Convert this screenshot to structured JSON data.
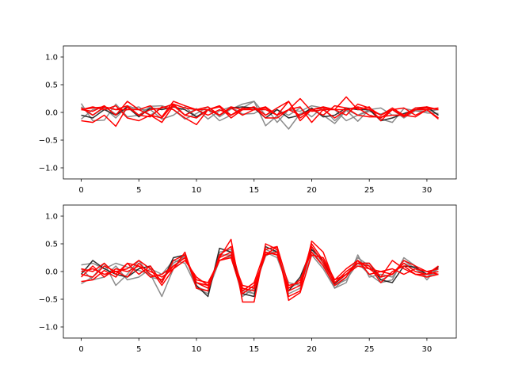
{
  "colors": {
    "gray": "#808080",
    "dark": "#1a1a1a",
    "red": "#ff0000"
  },
  "chart_data": [
    {
      "type": "line",
      "title": "",
      "xlabel": "",
      "ylabel": "",
      "xlim": [
        -1.55,
        32.55
      ],
      "ylim": [
        -1.2,
        1.2
      ],
      "grid": false,
      "xticks": [
        0,
        5,
        10,
        15,
        20,
        25,
        30
      ],
      "yticks": [
        -1.0,
        -0.5,
        0.0,
        0.5,
        1.0
      ],
      "xtick_labels": [
        "0",
        "5",
        "10",
        "15",
        "20",
        "25",
        "30"
      ],
      "ytick_labels": [
        "−1.0",
        "−0.5",
        "0.0",
        "0.5",
        "1.0"
      ],
      "x": [
        0,
        1,
        2,
        3,
        4,
        5,
        6,
        7,
        8,
        9,
        10,
        11,
        12,
        13,
        14,
        15,
        16,
        17,
        18,
        19,
        20,
        21,
        22,
        23,
        24,
        25,
        26,
        27,
        28,
        29,
        30,
        31
      ],
      "series": [
        {
          "color": "gray",
          "alpha": 0.9,
          "values": [
            0.16,
            -0.15,
            -0.14,
            0.15,
            -0.08,
            -0.05,
            0.11,
            0.12,
            0.05,
            -0.12,
            -0.02,
            0.1,
            -0.08,
            0.06,
            0.15,
            0.2,
            -0.24,
            -0.06,
            -0.3,
            -0.02,
            0.05,
            -0.05,
            -0.2,
            0.04,
            -0.16,
            0.05,
            -0.12,
            -0.18,
            0.07,
            0.03,
            -0.01,
            -0.02
          ]
        },
        {
          "color": "gray",
          "alpha": 0.9,
          "values": [
            -0.12,
            0.05,
            0.1,
            -0.03,
            0.05,
            0.1,
            -0.05,
            0.08,
            0.15,
            -0.05,
            0.07,
            -0.12,
            0.03,
            0.1,
            -0.03,
            -0.02,
            0.1,
            -0.18,
            0.05,
            0.02,
            0.12,
            0.08,
            -0.15,
            0.05,
            -0.05,
            0.02,
            -0.03,
            0.05,
            -0.1,
            0.03,
            0.02,
            0.05
          ]
        },
        {
          "color": "gray",
          "alpha": 0.9,
          "values": [
            0.1,
            -0.05,
            0.08,
            -0.1,
            0.12,
            0.05,
            0.05,
            -0.12,
            -0.05,
            0.1,
            -0.08,
            0.05,
            -0.15,
            -0.05,
            0.08,
            0.2,
            -0.05,
            0.05,
            -0.05,
            0.08,
            -0.08,
            0.1,
            0.05,
            -0.15,
            -0.05,
            0.05,
            0.08,
            -0.05,
            -0.05,
            0.08,
            0.08,
            -0.05
          ]
        },
        {
          "color": "dark",
          "alpha": 0.9,
          "values": [
            -0.05,
            -0.1,
            0.05,
            -0.05,
            0.1,
            -0.08,
            0.08,
            0.05,
            0.1,
            0.05,
            -0.08,
            0.05,
            -0.05,
            0.08,
            0.1,
            0.08,
            -0.1,
            0.05,
            -0.1,
            -0.05,
            0.08,
            -0.08,
            -0.05,
            0.08,
            0.05,
            0.05,
            -0.15,
            -0.1,
            -0.02,
            0.05,
            0.1,
            -0.05
          ]
        },
        {
          "color": "red",
          "alpha": 1.0,
          "values": [
            0.05,
            0.02,
            0.12,
            -0.05,
            0.2,
            0.05,
            0.12,
            -0.08,
            0.2,
            0.12,
            0.05,
            0.05,
            0.12,
            -0.05,
            0.05,
            0.05,
            0.1,
            -0.05,
            0.05,
            0.25,
            0.02,
            0.05,
            0.05,
            0.28,
            0.05,
            0.1,
            -0.15,
            0.05,
            0.08,
            -0.05,
            0.05,
            -0.1
          ]
        },
        {
          "color": "red",
          "alpha": 1.0,
          "values": [
            0.08,
            -0.05,
            0.1,
            0.05,
            0.12,
            -0.05,
            0.05,
            0.08,
            0.15,
            -0.05,
            0.05,
            0.1,
            -0.05,
            0.1,
            0.05,
            0.1,
            -0.05,
            0.08,
            0.2,
            -0.15,
            0.05,
            0.1,
            0.05,
            -0.05,
            0.15,
            0.08,
            -0.05,
            0.08,
            -0.05,
            0.08,
            0.1,
            0.05
          ]
        },
        {
          "color": "red",
          "alpha": 1.0,
          "values": [
            -0.15,
            -0.18,
            -0.05,
            -0.25,
            0.1,
            -0.05,
            -0.08,
            0.1,
            0.05,
            -0.1,
            -0.22,
            0.05,
            0.1,
            -0.1,
            0.05,
            0.1,
            -0.1,
            -0.1,
            0.05,
            0.1,
            -0.18,
            0.05,
            -0.1,
            0.05,
            0.08,
            -0.05,
            -0.1,
            0.05,
            -0.08,
            0.05,
            0.05,
            -0.12
          ]
        },
        {
          "color": "red",
          "alpha": 1.0,
          "values": [
            0.05,
            0.1,
            0.05,
            0.12,
            -0.1,
            -0.15,
            -0.05,
            -0.18,
            0.12,
            -0.05,
            -0.1,
            0.05,
            -0.05,
            0.08,
            -0.05,
            0.05,
            0.05,
            -0.05,
            0.05,
            -0.05,
            0.05,
            -0.05,
            0.12,
            0.08,
            -0.05,
            -0.08,
            -0.08,
            -0.05,
            -0.05,
            -0.08,
            0.05,
            0.08
          ]
        },
        {
          "color": "red",
          "alpha": 1.0,
          "values": [
            0.05,
            0.08,
            0.1,
            0.05,
            0.05,
            0.05,
            -0.05,
            -0.1,
            0.15,
            0.08,
            0.05,
            -0.05,
            0.05,
            -0.05,
            0.08,
            0.05,
            0.08,
            -0.05,
            0.2,
            -0.1,
            0.05,
            0.08,
            0.05,
            0.05,
            0.1,
            0.05,
            -0.05,
            0.05,
            -0.05,
            0.05,
            0.08,
            0.05
          ]
        }
      ]
    },
    {
      "type": "line",
      "title": "",
      "xlabel": "",
      "ylabel": "",
      "xlim": [
        -1.55,
        32.55
      ],
      "ylim": [
        -1.2,
        1.2
      ],
      "grid": false,
      "xticks": [
        0,
        5,
        10,
        15,
        20,
        25,
        30
      ],
      "yticks": [
        -1.0,
        -0.5,
        0.0,
        0.5,
        1.0
      ],
      "xtick_labels": [
        "0",
        "5",
        "10",
        "15",
        "20",
        "25",
        "30"
      ],
      "ytick_labels": [
        "−1.0",
        "−0.5",
        "0.0",
        "0.5",
        "1.0"
      ],
      "x": [
        0,
        1,
        2,
        3,
        4,
        5,
        6,
        7,
        8,
        9,
        10,
        11,
        12,
        13,
        14,
        15,
        16,
        17,
        18,
        19,
        20,
        21,
        22,
        23,
        24,
        25,
        26,
        27,
        28,
        29,
        30,
        31
      ],
      "series": [
        {
          "color": "gray",
          "alpha": 0.9,
          "values": [
            0.12,
            0.15,
            0.05,
            0.15,
            0.08,
            0.02,
            -0.05,
            -0.45,
            0.05,
            0.3,
            -0.3,
            -0.4,
            0.35,
            0.4,
            -0.3,
            -0.4,
            0.4,
            0.3,
            -0.2,
            -0.25,
            0.3,
            0.05,
            -0.3,
            -0.2,
            0.3,
            -0.1,
            -0.05,
            -0.1,
            0.2,
            0.05,
            -0.1,
            0.05
          ]
        },
        {
          "color": "gray",
          "alpha": 0.9,
          "values": [
            -0.22,
            -0.1,
            0.15,
            -0.25,
            -0.05,
            0.2,
            -0.1,
            -0.15,
            0.15,
            0.28,
            -0.2,
            -0.3,
            0.3,
            0.3,
            -0.35,
            -0.4,
            0.35,
            0.25,
            -0.3,
            -0.2,
            0.4,
            0.1,
            -0.25,
            -0.15,
            0.15,
            -0.05,
            -0.2,
            -0.15,
            0.25,
            0.1,
            -0.15,
            0.1
          ]
        },
        {
          "color": "gray",
          "alpha": 0.9,
          "values": [
            0.05,
            -0.15,
            -0.1,
            0.1,
            -0.15,
            -0.1,
            0.05,
            -0.05,
            0.2,
            0.15,
            -0.28,
            -0.35,
            0.2,
            0.28,
            -0.45,
            -0.3,
            0.28,
            0.4,
            -0.4,
            -0.3,
            0.45,
            0.15,
            -0.3,
            -0.1,
            0.25,
            0.1,
            -0.15,
            -0.05,
            0.15,
            0.05,
            -0.05,
            -0.05
          ]
        },
        {
          "color": "dark",
          "alpha": 0.9,
          "values": [
            -0.05,
            0.2,
            0.05,
            -0.05,
            -0.1,
            0.05,
            0.1,
            -0.2,
            0.25,
            0.3,
            -0.25,
            -0.45,
            0.42,
            0.35,
            -0.4,
            -0.45,
            0.45,
            0.35,
            -0.35,
            -0.1,
            0.4,
            0.2,
            -0.22,
            -0.05,
            0.15,
            0.15,
            -0.15,
            -0.2,
            0.1,
            0.08,
            -0.05,
            0.08
          ]
        },
        {
          "color": "red",
          "alpha": 1.0,
          "values": [
            0.05,
            0.0,
            0.15,
            -0.05,
            0.15,
            -0.05,
            0.1,
            -0.2,
            0.2,
            0.3,
            -0.2,
            -0.25,
            0.25,
            0.58,
            -0.55,
            -0.55,
            0.5,
            0.4,
            -0.45,
            -0.35,
            0.55,
            0.35,
            -0.2,
            -0.05,
            0.1,
            0.05,
            0.0,
            0.05,
            -0.05,
            0.05,
            0.0,
            0.05
          ]
        },
        {
          "color": "red",
          "alpha": 1.0,
          "values": [
            -0.18,
            -0.15,
            0.02,
            -0.1,
            0.15,
            0.1,
            -0.1,
            -0.05,
            0.1,
            0.25,
            -0.15,
            -0.2,
            0.2,
            0.3,
            -0.25,
            -0.3,
            0.3,
            0.45,
            -0.52,
            -0.38,
            0.3,
            0.25,
            -0.15,
            0.05,
            0.2,
            0.05,
            -0.1,
            0.2,
            0.05,
            -0.05,
            -0.05,
            0.1
          ]
        },
        {
          "color": "red",
          "alpha": 1.0,
          "values": [
            -0.05,
            -0.1,
            0.1,
            0.0,
            0.05,
            0.2,
            0.05,
            -0.25,
            0.05,
            0.35,
            -0.3,
            -0.35,
            0.3,
            0.45,
            -0.35,
            -0.2,
            0.4,
            0.45,
            -0.25,
            -0.2,
            0.5,
            0.2,
            -0.15,
            -0.05,
            0.15,
            0.1,
            -0.2,
            0.0,
            0.1,
            -0.05,
            -0.1,
            -0.05
          ]
        },
        {
          "color": "red",
          "alpha": 1.0,
          "values": [
            0.0,
            0.05,
            -0.05,
            0.0,
            -0.1,
            0.15,
            -0.05,
            -0.15,
            0.1,
            0.25,
            -0.2,
            -0.3,
            0.25,
            0.35,
            -0.3,
            -0.35,
            0.35,
            0.3,
            -0.3,
            -0.15,
            0.35,
            0.1,
            -0.25,
            -0.1,
            0.2,
            -0.05,
            0.0,
            -0.05,
            0.15,
            0.0,
            -0.05,
            0.0
          ]
        },
        {
          "color": "red",
          "alpha": 1.0,
          "values": [
            -0.1,
            0.1,
            -0.1,
            0.05,
            0.0,
            0.1,
            0.0,
            -0.1,
            0.05,
            0.2,
            -0.1,
            -0.25,
            0.2,
            0.25,
            -0.4,
            -0.25,
            0.3,
            0.35,
            -0.35,
            -0.25,
            0.45,
            0.15,
            -0.2,
            0.0,
            0.15,
            0.15,
            -0.1,
            -0.05,
            0.2,
            0.1,
            0.0,
            -0.05
          ]
        }
      ]
    }
  ]
}
